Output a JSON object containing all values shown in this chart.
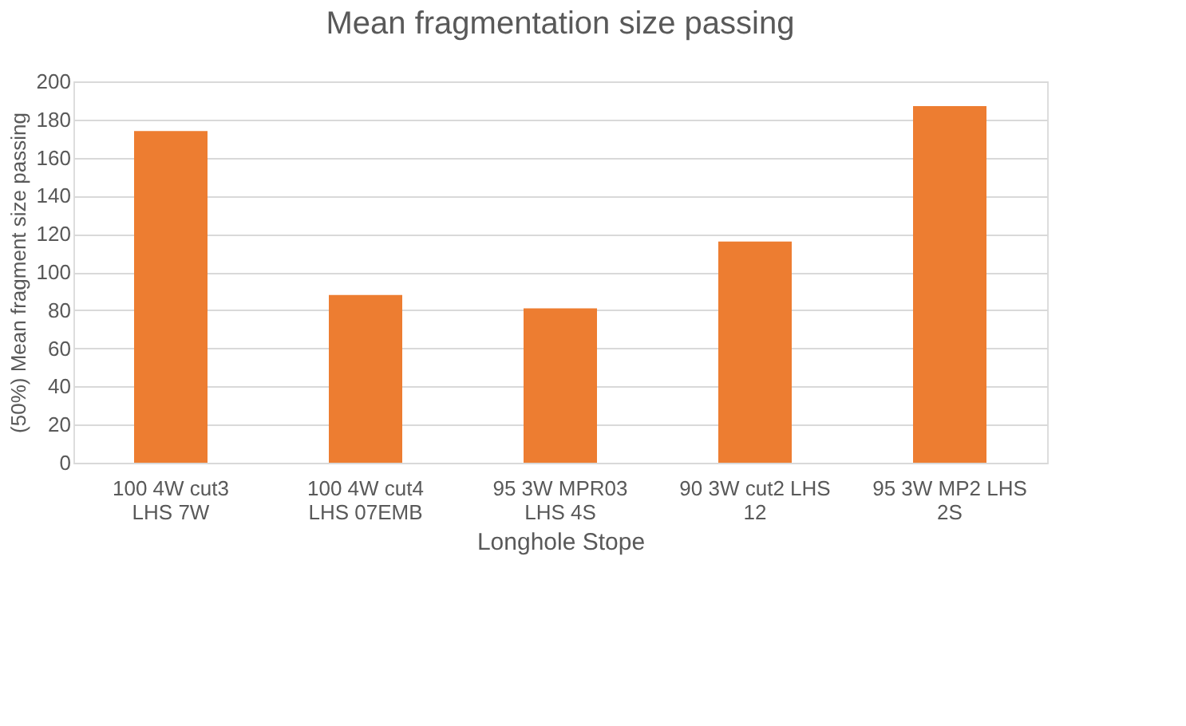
{
  "chart_data": {
    "type": "bar",
    "title": "Mean fragmentation size passing",
    "xlabel": "Longhole Stope",
    "ylabel": "(50%) Mean fragment size passing",
    "categories": [
      "100 4W cut3 LHS 7W",
      "100 4W cut4 LHS 07EMB",
      "95 3W MPR03 LHS 4S",
      "90 3W cut2 LHS 12",
      "95 3W MP2 LHS 2S"
    ],
    "values": [
      174,
      88,
      81,
      116,
      187
    ],
    "color": "#ed7d31",
    "ylim": [
      0,
      200
    ],
    "yticks": [
      0,
      20,
      40,
      60,
      80,
      100,
      120,
      140,
      160,
      180,
      200
    ],
    "grid": "y"
  }
}
